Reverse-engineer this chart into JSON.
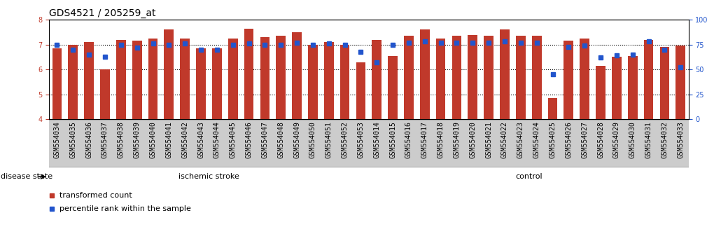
{
  "title": "GDS4521 / 205259_at",
  "categories": [
    "GSM554034",
    "GSM554035",
    "GSM554036",
    "GSM554037",
    "GSM554038",
    "GSM554039",
    "GSM554040",
    "GSM554041",
    "GSM554042",
    "GSM554043",
    "GSM554044",
    "GSM554045",
    "GSM554046",
    "GSM554047",
    "GSM554048",
    "GSM554049",
    "GSM554050",
    "GSM554051",
    "GSM554052",
    "GSM554053",
    "GSM554014",
    "GSM554015",
    "GSM554016",
    "GSM554017",
    "GSM554018",
    "GSM554019",
    "GSM554020",
    "GSM554021",
    "GSM554022",
    "GSM554023",
    "GSM554024",
    "GSM554025",
    "GSM554026",
    "GSM554027",
    "GSM554028",
    "GSM554029",
    "GSM554030",
    "GSM554031",
    "GSM554032",
    "GSM554033"
  ],
  "bar_values": [
    6.85,
    7.0,
    7.1,
    6.0,
    7.2,
    7.15,
    7.25,
    7.6,
    7.25,
    6.85,
    6.85,
    7.25,
    7.65,
    7.3,
    7.35,
    7.5,
    7.0,
    7.1,
    7.0,
    6.3,
    7.2,
    6.55,
    7.35,
    7.6,
    7.25,
    7.35,
    7.4,
    7.35,
    7.6,
    7.35,
    7.35,
    4.85,
    7.15,
    7.25,
    6.15,
    6.5,
    6.55,
    7.2,
    6.9,
    6.95
  ],
  "percentile_values": [
    75,
    70,
    65,
    63,
    75,
    72,
    76,
    75,
    76,
    70,
    70,
    75,
    76,
    75,
    75,
    77,
    75,
    76,
    75,
    68,
    57,
    75,
    77,
    78,
    77,
    77,
    77,
    77,
    78,
    77,
    77,
    45,
    73,
    74,
    62,
    64,
    65,
    78,
    70,
    52
  ],
  "ischemic_stroke_count": 20,
  "bar_color": "#C0392B",
  "dot_color": "#2255CC",
  "ylim_left": [
    4.0,
    8.0
  ],
  "ylim_right": [
    0,
    100
  ],
  "yticks_left": [
    4,
    5,
    6,
    7,
    8
  ],
  "yticks_right": [
    0,
    25,
    50,
    75,
    100
  ],
  "disease_state_label": "disease state",
  "ischemic_label": "ischemic stroke",
  "control_label": "control",
  "legend_bar_label": "transformed count",
  "legend_dot_label": "percentile rank within the sample",
  "ischemic_bg": "#d8f0d8",
  "control_bg": "#90EE90",
  "xlabel_bg": "#cccccc",
  "title_fontsize": 10,
  "tick_fontsize": 7,
  "label_fontsize": 8
}
